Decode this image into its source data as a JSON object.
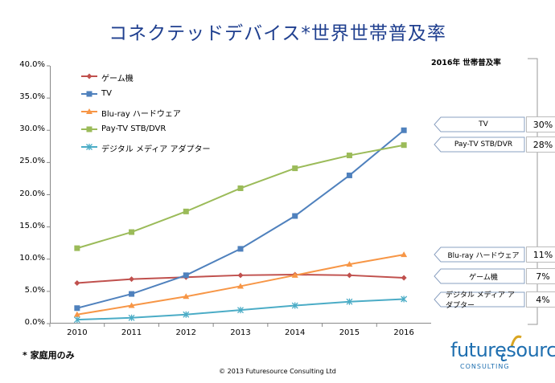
{
  "title": "コネクテッドデバイス*世界世帯普及率",
  "footnote": "* 家庭用のみ",
  "copyright": "© 2013 Futuresource Consulting Ltd",
  "logo": {
    "word": "futuresource",
    "sub": "CONSULTING"
  },
  "side_panel": {
    "title": "2016年 世帯普及率",
    "items": [
      {
        "label": "TV",
        "value": "30%"
      },
      {
        "label": "Pay-TV STB/DVR",
        "value": "28%"
      },
      {
        "label": "Blu-ray ハードウェア",
        "value": "11%"
      },
      {
        "label": "ゲーム機",
        "value": "7%"
      },
      {
        "label": "デジタル メディア アダプター",
        "value": "4%"
      }
    ]
  },
  "chart_data": {
    "type": "line",
    "title": "コネクテッドデバイス*世界世帯普及率",
    "x": [
      "2010",
      "2011",
      "2012",
      "2013",
      "2014",
      "2015",
      "2016"
    ],
    "ylim": [
      0,
      40
    ],
    "yticks": [
      "0.0%",
      "5.0%",
      "10.0%",
      "15.0%",
      "20.0%",
      "25.0%",
      "30.0%",
      "35.0%",
      "40.0%"
    ],
    "legend_position": "top-left",
    "series": [
      {
        "name": "ゲーム機",
        "color": "#c0504d",
        "marker": "diamond",
        "values": [
          6.3,
          6.9,
          7.2,
          7.5,
          7.6,
          7.5,
          7.1
        ]
      },
      {
        "name": "TV",
        "color": "#4f81bd",
        "marker": "square",
        "values": [
          2.4,
          4.6,
          7.5,
          11.6,
          16.7,
          23.0,
          30.0
        ]
      },
      {
        "name": "Blu-ray ハードウェア",
        "color": "#f79646",
        "marker": "triangle",
        "values": [
          1.4,
          2.8,
          4.2,
          5.8,
          7.5,
          9.2,
          10.7
        ]
      },
      {
        "name": "Pay-TV STB/DVR",
        "color": "#9bbb59",
        "marker": "square",
        "values": [
          11.7,
          14.2,
          17.4,
          21.0,
          24.1,
          26.1,
          27.7
        ]
      },
      {
        "name": "デジタル メディア アダプター",
        "color": "#4bacc6",
        "marker": "asterisk",
        "values": [
          0.6,
          0.9,
          1.4,
          2.1,
          2.8,
          3.4,
          3.8
        ]
      }
    ]
  }
}
